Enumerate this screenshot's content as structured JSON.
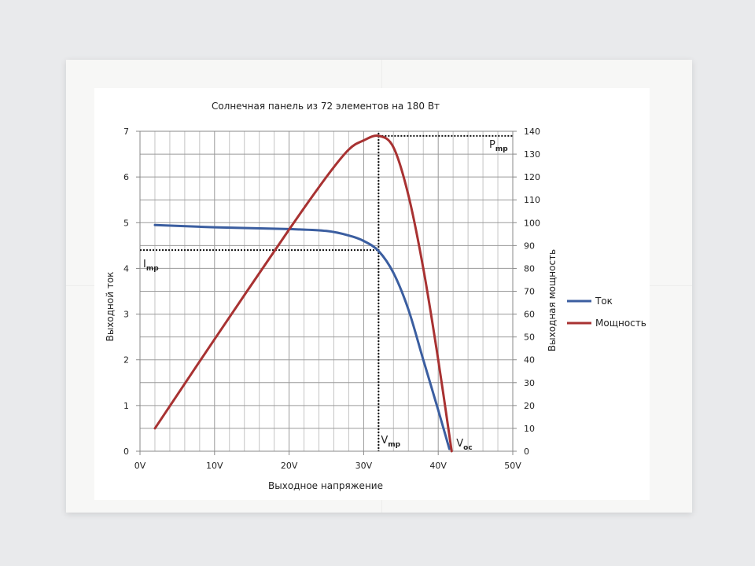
{
  "chart_data": {
    "type": "line",
    "title": "Солнечная панель из 72 элементов на 180 Вт",
    "xlabel": "Выходное напряжение",
    "ylabel": "Выходной ток",
    "y2label": "Выходная мощность",
    "xlim": [
      0,
      50
    ],
    "ylim": [
      0,
      7
    ],
    "y2lim": [
      0,
      140
    ],
    "x_ticks": [
      "0V",
      "10V",
      "20V",
      "30V",
      "40V",
      "50V"
    ],
    "y_ticks": [
      "0",
      "1",
      "2",
      "3",
      "4",
      "5",
      "6",
      "7"
    ],
    "y2_ticks": [
      "0",
      "10",
      "20",
      "30",
      "40",
      "50",
      "60",
      "70",
      "80",
      "90",
      "100",
      "110",
      "120",
      "130",
      "140"
    ],
    "grid": true,
    "legend_position": "right",
    "series": [
      {
        "name": "Ток",
        "axis": "left",
        "color": "#3b5ea0",
        "x": [
          2,
          10,
          20,
          25,
          28,
          30,
          32,
          34,
          36,
          38,
          40,
          41.5
        ],
        "y": [
          4.95,
          4.9,
          4.86,
          4.82,
          4.72,
          4.6,
          4.38,
          3.9,
          3.1,
          2.0,
          0.9,
          0.05
        ]
      },
      {
        "name": "Мощность",
        "axis": "right",
        "color": "#a83232",
        "x": [
          2,
          10,
          20,
          25,
          28,
          30,
          32,
          34,
          36,
          38,
          40,
          41.8
        ],
        "y": [
          10,
          49,
          97,
          120,
          132,
          136,
          138,
          133,
          112,
          80,
          40,
          0
        ]
      }
    ],
    "annotations": {
      "imp": {
        "main": "I",
        "sub": "mp",
        "value": 4.4
      },
      "vmp": {
        "main": "V",
        "sub": "mp",
        "value": 32
      },
      "pmp": {
        "main": "P",
        "sub": "mp",
        "value": 138
      },
      "voc": {
        "main": "V",
        "sub": "oc",
        "value": 41.8
      }
    }
  }
}
